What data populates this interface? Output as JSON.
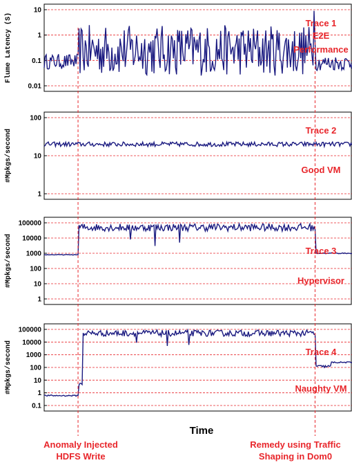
{
  "chart_data": [
    {
      "type": "line",
      "ylabel": "Flume Latency (S)",
      "yscale": "log",
      "ylim": [
        0.01,
        10
      ],
      "yticks": [
        "0.01",
        "0.1",
        "1",
        "10"
      ],
      "labels": [
        "Trace 1",
        "E2E",
        "Performance"
      ],
      "series": [
        {
          "color": "#1a1a80",
          "segments": [
            {
              "from": 0.0,
              "to": 0.11,
              "base": 0.09,
              "spread": 0.3
            },
            {
              "from": 0.11,
              "to": 0.88,
              "base": 0.25,
              "spread": 1.0
            },
            {
              "from": 0.88,
              "to": 1.0,
              "base": 0.08,
              "spread": 0.3
            }
          ],
          "spikes": [
            {
              "t": 0.877,
              "v": 9
            }
          ]
        }
      ]
    },
    {
      "type": "line",
      "ylabel": "#Mpkgs/second",
      "yscale": "log",
      "ylim": [
        1,
        100
      ],
      "yticks": [
        "1",
        "10",
        "100"
      ],
      "labels": [
        "Trace 2",
        "Good VM"
      ],
      "series": [
        {
          "color": "#1a1a80",
          "segments": [
            {
              "from": 0.0,
              "to": 1.0,
              "base": 20,
              "spread": 0.06
            }
          ],
          "spikes": []
        }
      ]
    },
    {
      "type": "line",
      "ylabel": "#Mpkgs/second",
      "yscale": "log",
      "ylim": [
        1,
        100000
      ],
      "yticks": [
        "1",
        "10",
        "100",
        "1000",
        "10000",
        "100000"
      ],
      "labels": [
        "Trace 3",
        "Hypervisor"
      ],
      "series": [
        {
          "color": "#1a1a80",
          "segments": [
            {
              "from": 0.0,
              "to": 0.11,
              "base": 800,
              "spread": 0.02
            },
            {
              "from": 0.11,
              "to": 0.88,
              "base": 50000,
              "spread": 0.25
            },
            {
              "from": 0.88,
              "to": 1.0,
              "base": 1000,
              "spread": 0.03
            }
          ],
          "spikes": [
            {
              "t": 0.36,
              "v": 3000
            },
            {
              "t": 0.44,
              "v": 5000
            },
            {
              "t": 0.28,
              "v": 8000
            }
          ]
        }
      ]
    },
    {
      "type": "line",
      "ylabel": "#Mpkgs/second",
      "yscale": "log",
      "ylim": [
        0.1,
        100000
      ],
      "yticks": [
        "0.1",
        "1",
        "10",
        "100",
        "1000",
        "10000",
        "100000"
      ],
      "labels": [
        "Trace 4",
        "Naughty VM"
      ],
      "series": [
        {
          "color": "#1a1a80",
          "segments": [
            {
              "from": 0.0,
              "to": 0.11,
              "base": 0.6,
              "spread": 0.05
            },
            {
              "from": 0.11,
              "to": 0.125,
              "base": 5,
              "spread": 0.1
            },
            {
              "from": 0.125,
              "to": 0.88,
              "base": 50000,
              "spread": 0.25
            },
            {
              "from": 0.88,
              "to": 0.93,
              "base": 120,
              "spread": 0.1
            },
            {
              "from": 0.93,
              "to": 1.0,
              "base": 250,
              "spread": 0.05
            }
          ],
          "spikes": [
            {
              "t": 0.4,
              "v": 5000
            },
            {
              "t": 0.47,
              "v": 6000
            },
            {
              "t": 0.3,
              "v": 9000
            }
          ]
        }
      ]
    }
  ],
  "xlabel": "Time",
  "annotations": {
    "left": [
      "Anomaly Injected",
      "HDFS Write"
    ],
    "right": [
      "Remedy using Traffic",
      "Shaping in Dom0"
    ],
    "left_t": 0.11,
    "right_t": 0.88
  },
  "colors": {
    "line": "#1a1a80",
    "red": "#e8262b"
  }
}
